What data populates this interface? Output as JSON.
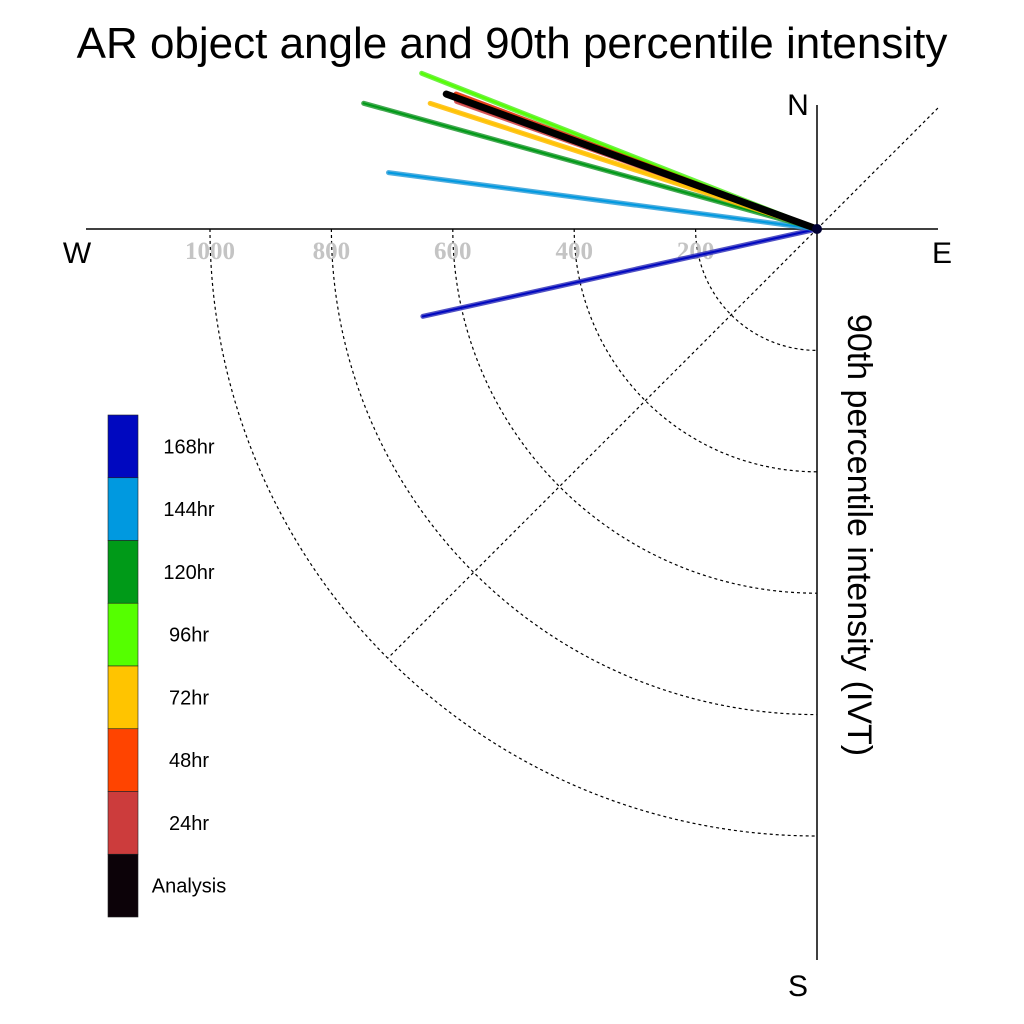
{
  "chart_data": {
    "type": "polar-rose",
    "title": "AR object angle and 90th percentile intensity",
    "ylabel": "90th percentile intensity (IVT)",
    "compass": {
      "north": "N",
      "south": "S",
      "east": "E",
      "west": "W"
    },
    "radial_ticks": [
      {
        "value": 200,
        "label": "200"
      },
      {
        "value": 400,
        "label": "400"
      },
      {
        "value": 600,
        "label": "600"
      },
      {
        "value": 800,
        "label": "800"
      },
      {
        "value": 1000,
        "label": "1000"
      }
    ],
    "rmax": 1200,
    "grid": true,
    "series": [
      {
        "name": "168hr",
        "color": "#0008c0",
        "line_color": "#3333bb",
        "angle_deg": -167.5,
        "intensity": 665
      },
      {
        "name": "144hr",
        "color": "#0099e0",
        "line_color": "#2f9fd8",
        "angle_deg": 172.5,
        "intensity": 712
      },
      {
        "name": "120hr",
        "color": "#009a18",
        "line_color": "#229a33",
        "angle_deg": 164.5,
        "intensity": 775
      },
      {
        "name": "96hr",
        "color": "#55ff00",
        "line_color": "#55ee22",
        "angle_deg": 158.5,
        "intensity": 700
      },
      {
        "name": "72hr",
        "color": "#ffc400",
        "line_color": "#ffbb00",
        "angle_deg": 162.0,
        "intensity": 670
      },
      {
        "name": "48hr",
        "color": "#ff4400",
        "line_color": "#dd2200",
        "angle_deg": 159.5,
        "intensity": 635
      },
      {
        "name": "24hr",
        "color": "#cc3c3c",
        "line_color": "#cc3c3c",
        "angle_deg": 160.5,
        "intensity": 630
      },
      {
        "name": "Analysis",
        "color": "#0c0208",
        "line_color": "#000000",
        "angle_deg": 160.0,
        "intensity": 650
      }
    ],
    "legend": {
      "placement": "left"
    }
  }
}
